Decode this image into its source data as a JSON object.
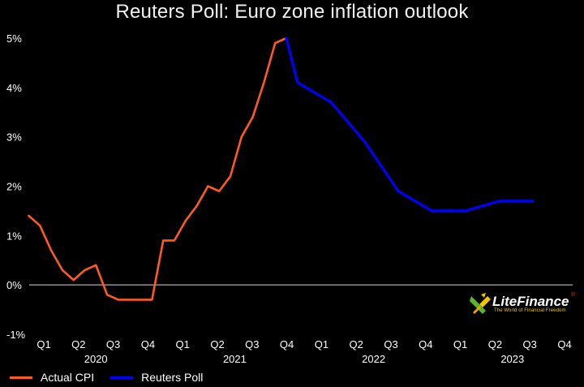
{
  "chart_data": {
    "type": "line",
    "title": "Reuters Poll: Euro zone inflation outlook",
    "ylim": [
      -1,
      5
    ],
    "y_ticks": [
      "5%",
      "4%",
      "3%",
      "2%",
      "1%",
      "0%",
      "-1%"
    ],
    "y_tick_values": [
      5,
      4,
      3,
      2,
      1,
      0,
      -1
    ],
    "quarter_labels": [
      "Q1",
      "Q2",
      "Q3",
      "Q4",
      "Q1",
      "Q2",
      "Q3",
      "Q4",
      "Q1",
      "Q2",
      "Q3",
      "Q4",
      "Q1",
      "Q2",
      "Q3",
      "Q4"
    ],
    "year_labels": [
      "2020",
      "2021",
      "2022",
      "2023"
    ],
    "grid": false,
    "legend_position": "bottom-left",
    "series": [
      {
        "name": "Actual CPI",
        "color": "#ff5a1f",
        "points": [
          [
            "2020-01",
            1.4
          ],
          [
            "2020-02",
            1.2
          ],
          [
            "2020-03",
            0.7
          ],
          [
            "2020-04",
            0.3
          ],
          [
            "2020-05",
            0.1
          ],
          [
            "2020-06",
            0.3
          ],
          [
            "2020-07",
            0.4
          ],
          [
            "2020-08",
            -0.2
          ],
          [
            "2020-09",
            -0.3
          ],
          [
            "2020-10",
            -0.3
          ],
          [
            "2020-11",
            -0.3
          ],
          [
            "2020-12",
            -0.3
          ],
          [
            "2021-01",
            0.9
          ],
          [
            "2021-02",
            0.9
          ],
          [
            "2021-03",
            1.3
          ],
          [
            "2021-04",
            1.6
          ],
          [
            "2021-05",
            2.0
          ],
          [
            "2021-06",
            1.9
          ],
          [
            "2021-07",
            2.2
          ],
          [
            "2021-08",
            3.0
          ],
          [
            "2021-09",
            3.4
          ],
          [
            "2021-10",
            4.1
          ],
          [
            "2021-11",
            4.9
          ],
          [
            "2021-12",
            5.0
          ]
        ]
      },
      {
        "name": "Reuters Poll",
        "color": "#0000ff",
        "points": [
          [
            "2021-12",
            5.0
          ],
          [
            "2022-01",
            4.1
          ],
          [
            "2022-04",
            3.7
          ],
          [
            "2022-07",
            2.9
          ],
          [
            "2022-10",
            1.9
          ],
          [
            "2023-01",
            1.5
          ],
          [
            "2023-04",
            1.5
          ],
          [
            "2023-07",
            1.7
          ],
          [
            "2023-10",
            1.7
          ]
        ]
      }
    ],
    "zero_line_color": "#d9d9d9"
  },
  "watermark": {
    "brand": "LiteFinance",
    "brand_part1": "Lite",
    "brand_part2": "Finance",
    "tagline": "The World of Financial Freedom",
    "registered": "®",
    "colors": {
      "green": "#5cb531",
      "yellow": "#f5c400",
      "red": "#e03030"
    }
  }
}
